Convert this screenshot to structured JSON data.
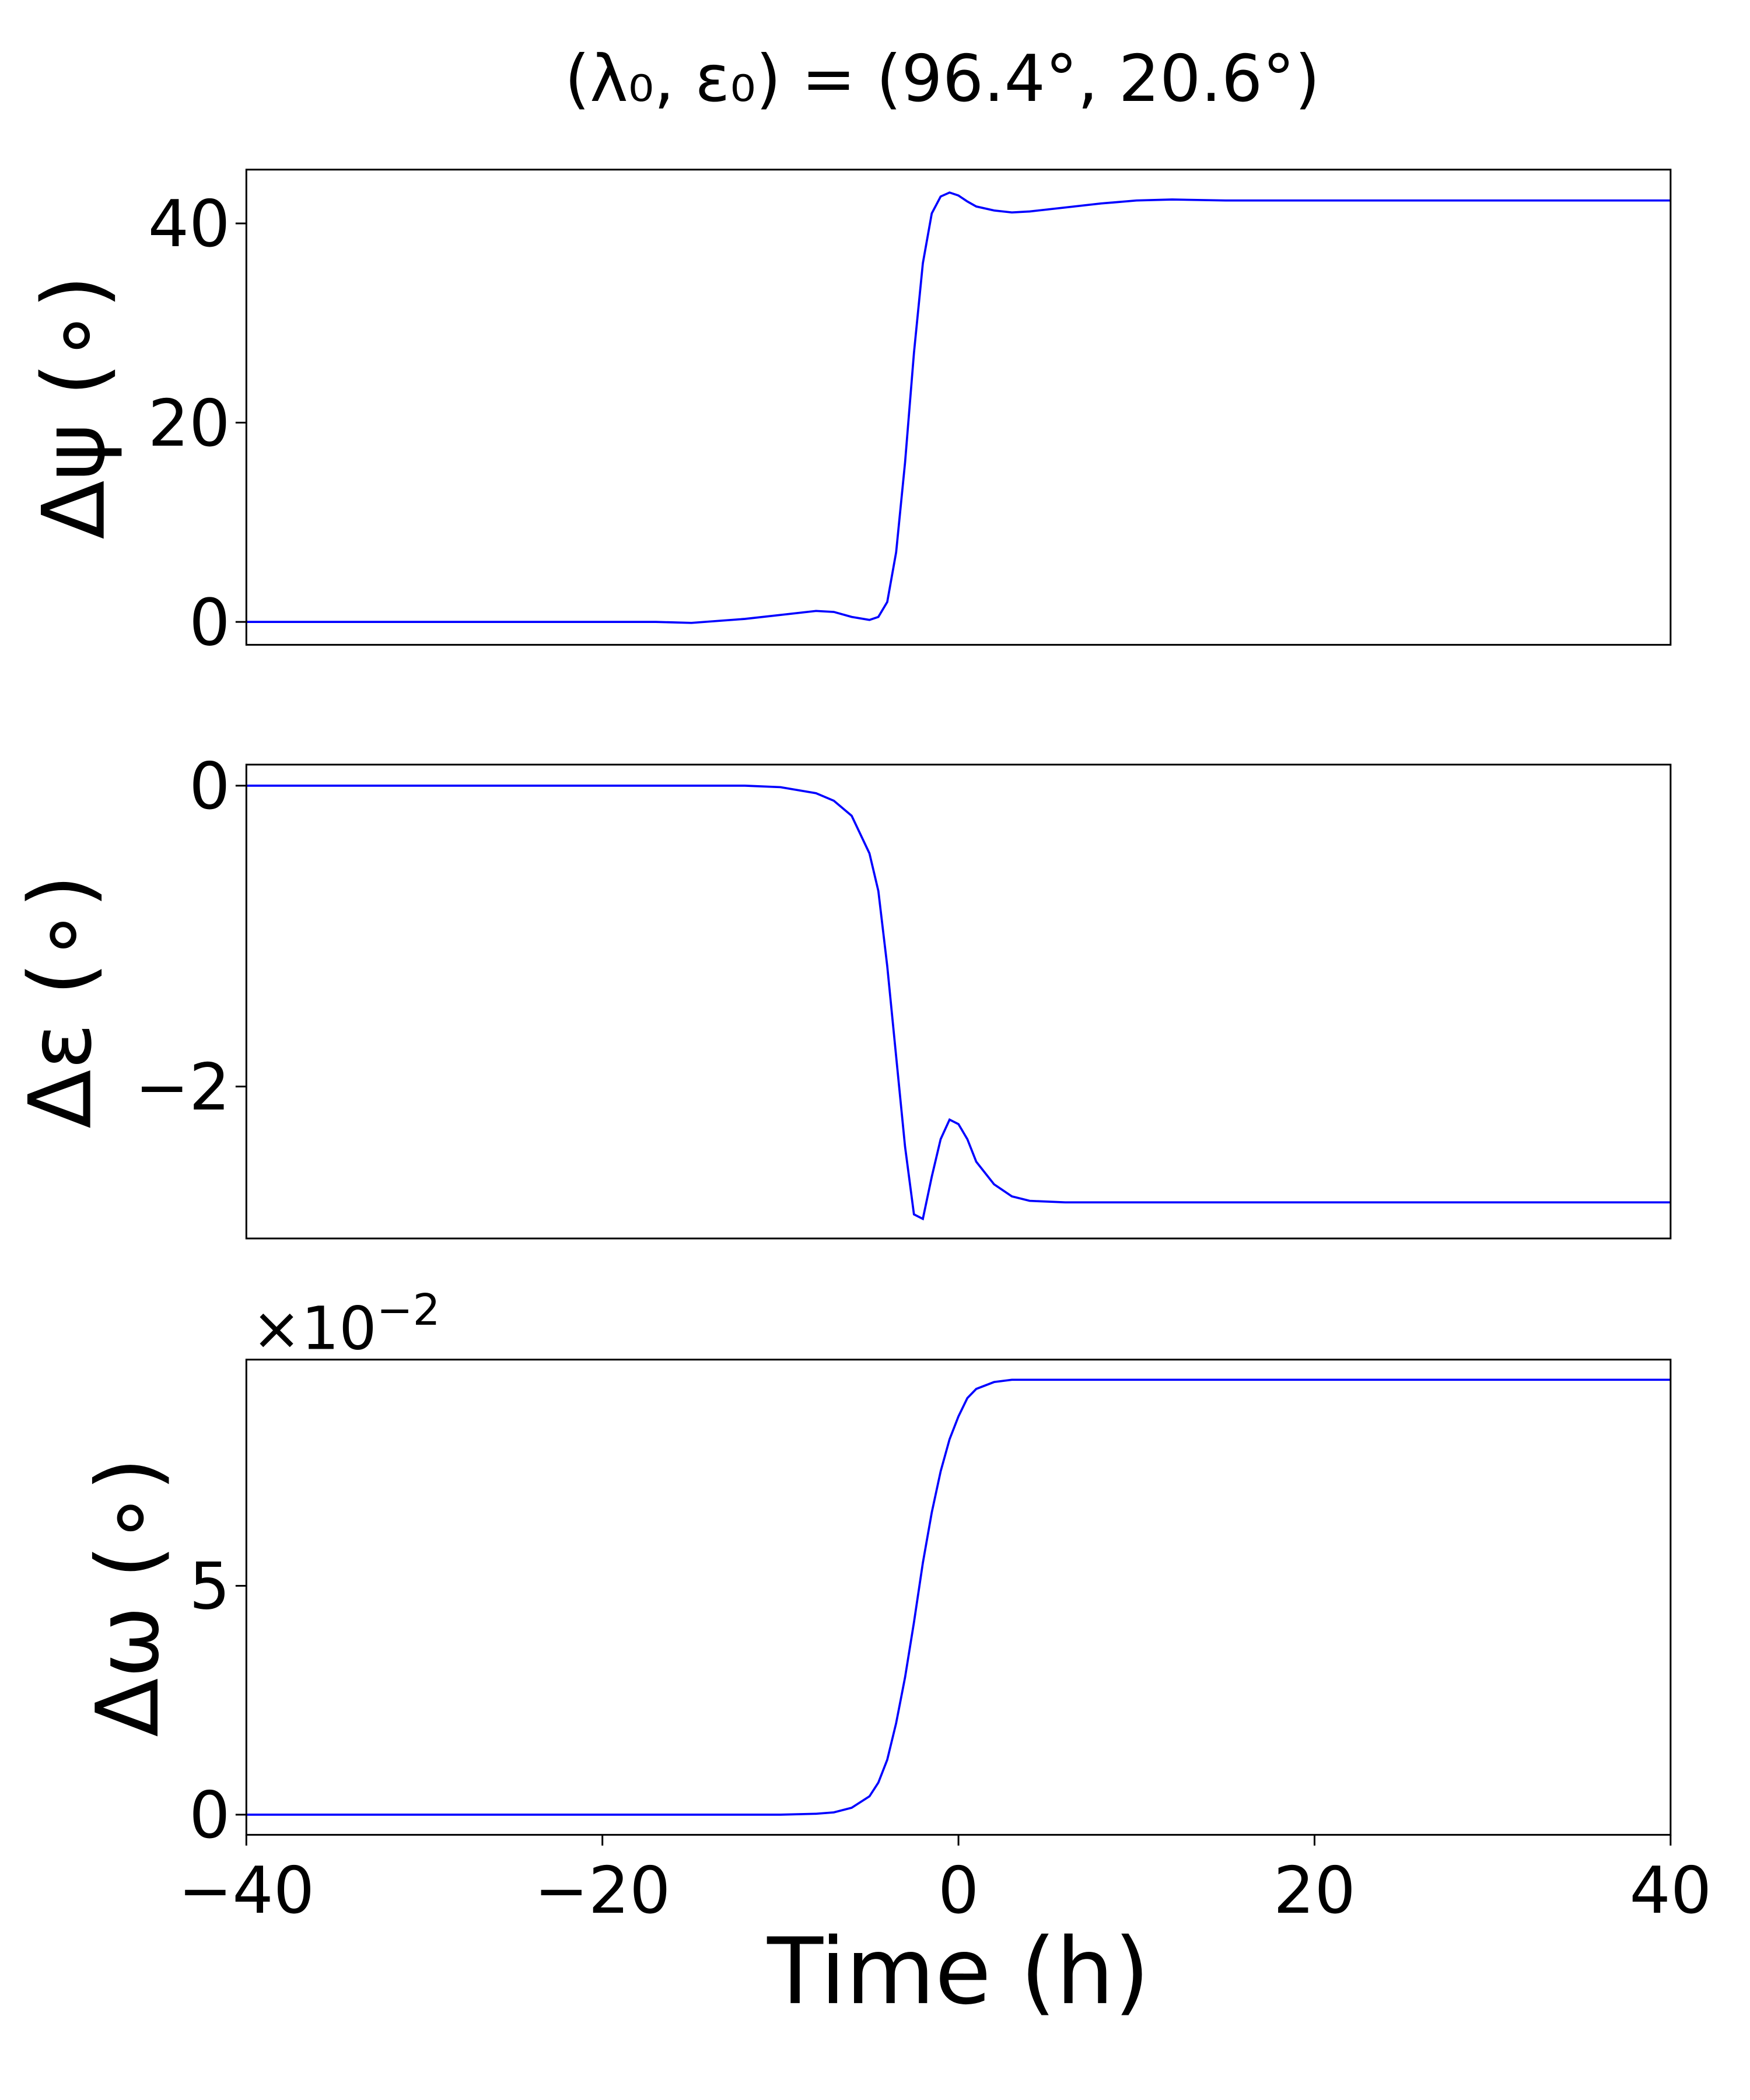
{
  "chart_data": [
    {
      "type": "line",
      "title": "(λ₀, ε₀) = (96.4°, 20.6°)",
      "y_label": "Δψ (∘)",
      "x": [
        -40,
        -30,
        -20,
        -17,
        -15,
        -12,
        -10,
        -8,
        -7,
        -6,
        -5,
        -4.5,
        -4,
        -3.5,
        -3,
        -2.5,
        -2,
        -1.5,
        -1,
        -0.5,
        0,
        0.5,
        1,
        2,
        3,
        4,
        6,
        8,
        10,
        12,
        15,
        20,
        30,
        40
      ],
      "values": [
        0,
        0,
        0,
        0,
        -0.1,
        0.3,
        0.7,
        1.1,
        1.0,
        0.5,
        0.2,
        0.5,
        2,
        7,
        16,
        27,
        36,
        41,
        42.7,
        43.1,
        42.8,
        42.2,
        41.7,
        41.3,
        41.1,
        41.2,
        41.6,
        42.0,
        42.3,
        42.4,
        42.3,
        42.3,
        42.3,
        42.3
      ],
      "color": "#0000ff",
      "xlim": [
        -40,
        40
      ],
      "ylim": [
        -2.3,
        45.4
      ],
      "yticks": [
        0,
        20,
        40
      ]
    },
    {
      "type": "line",
      "y_label": "Δε (∘)",
      "x": [
        -40,
        -30,
        -20,
        -17,
        -15,
        -12,
        -10,
        -8,
        -7,
        -6,
        -5,
        -4.5,
        -4,
        -3.5,
        -3,
        -2.5,
        -2,
        -1.5,
        -1,
        -0.5,
        0,
        0.5,
        1,
        2,
        3,
        4,
        6,
        8,
        10,
        12,
        15,
        20,
        30,
        40
      ],
      "values": [
        0,
        0,
        0,
        0,
        0,
        0,
        -0.01,
        -0.05,
        -0.1,
        -0.2,
        -0.45,
        -0.7,
        -1.2,
        -1.8,
        -2.4,
        -2.85,
        -2.88,
        -2.6,
        -2.35,
        -2.22,
        -2.25,
        -2.35,
        -2.5,
        -2.65,
        -2.73,
        -2.76,
        -2.77,
        -2.77,
        -2.77,
        -2.77,
        -2.77,
        -2.77,
        -2.77,
        -2.77
      ],
      "color": "#0000ff",
      "xlim": [
        -40,
        40
      ],
      "ylim": [
        -3.01,
        0.14
      ],
      "yticks": [
        0,
        {
          "value": -2,
          "label": "−2"
        }
      ]
    },
    {
      "type": "line",
      "y_label": "Δω (∘)",
      "x_label": "Time (h)",
      "offset_text": {
        "base": "×10",
        "exponent": "−2"
      },
      "x": [
        -40,
        -30,
        -20,
        -17,
        -15,
        -12,
        -10,
        -8,
        -7,
        -6,
        -5,
        -4.5,
        -4,
        -3.5,
        -3,
        -2.5,
        -2,
        -1.5,
        -1,
        -0.5,
        0,
        0.5,
        1,
        2,
        3,
        4,
        6,
        8,
        10,
        12,
        15,
        20,
        30,
        40
      ],
      "values": [
        0,
        0,
        0,
        0,
        0,
        0,
        0,
        0.02,
        0.05,
        0.15,
        0.4,
        0.7,
        1.2,
        2.0,
        3.0,
        4.2,
        5.5,
        6.6,
        7.5,
        8.2,
        8.7,
        9.1,
        9.3,
        9.45,
        9.5,
        9.5,
        9.5,
        9.5,
        9.5,
        9.5,
        9.5,
        9.5,
        9.5,
        9.5
      ],
      "color": "#0000ff",
      "xlim": [
        -40,
        40
      ],
      "ylim": [
        -0.44,
        9.94
      ],
      "yticks": [
        0,
        5
      ],
      "xticks": [
        {
          "value": -40,
          "label": "−40"
        },
        {
          "value": -20,
          "label": "−20"
        },
        0,
        20,
        40
      ]
    }
  ]
}
